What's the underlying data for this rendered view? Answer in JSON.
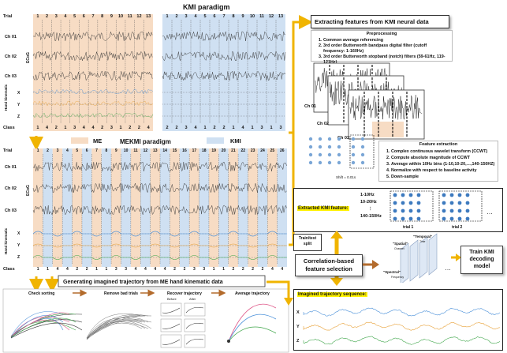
{
  "colors": {
    "me_shade": "#f7dcc4",
    "kmi_shade": "#cfe0f2",
    "arrow": "#f0b400",
    "highlight": "#fff200",
    "trace": "#333333",
    "x_color": "#4a90d9",
    "y_color": "#e8a23a",
    "z_color": "#3fa64a"
  },
  "kmi_paradigm": {
    "title": "KMI paradigm",
    "trial_label": "Trial",
    "trials": [
      "1",
      "2",
      "3",
      "4",
      "5",
      "6",
      "7",
      "8",
      "9",
      "10",
      "11",
      "12",
      "13"
    ],
    "trials_right": [
      "1",
      "2",
      "3",
      "4",
      "5",
      "6",
      "7",
      "8",
      "9",
      "10",
      "11",
      "12",
      "13"
    ],
    "channels": [
      "Ch 01",
      "Ch 02",
      "Ch 03"
    ],
    "eeg_label": "ECoG",
    "kin_label": "Hand kinematic",
    "kin_axes": [
      "X",
      "Y",
      "Z"
    ],
    "class_label": "Class",
    "classes": [
      "1",
      "4",
      "2",
      "1",
      "3",
      "4",
      "4",
      "2",
      "3",
      "1",
      "2",
      "2",
      "4"
    ],
    "classes_right": [
      "2",
      "2",
      "3",
      "4",
      "1",
      "2",
      "2",
      "1",
      "4",
      "1",
      "3",
      "1",
      "3"
    ]
  },
  "mekmi_paradigm": {
    "title": "MEKMI paradigm",
    "me_label": "ME",
    "kmi_label": "KMI",
    "trial_label": "Trial",
    "trials": [
      "1",
      "2",
      "3",
      "4",
      "5",
      "6",
      "7",
      "8",
      "9",
      "10",
      "11",
      "12",
      "13",
      "14",
      "15",
      "16",
      "17",
      "18",
      "19",
      "20",
      "21",
      "22",
      "23",
      "24",
      "25",
      "26"
    ],
    "channels": [
      "Ch 01",
      "Ch 02",
      "Ch 03"
    ],
    "eeg_label": "ECoG",
    "kin_label": "Hand kinematic",
    "kin_axes": [
      "X",
      "Y",
      "Z"
    ],
    "class_label": "Class",
    "classes": [
      "1",
      "1",
      "4",
      "4",
      "2",
      "2",
      "1",
      "1",
      "3",
      "3",
      "4",
      "4",
      "4",
      "4",
      "2",
      "2",
      "3",
      "3",
      "1",
      "1",
      "2",
      "2",
      "2",
      "2",
      "4",
      "4"
    ]
  },
  "extract": {
    "title": "Extracting features from KMI neural data",
    "pre_title": "Preprocessing",
    "pre_steps": [
      "Common average referencing",
      "3rd order Butterworth bandpass digital filter (cutoff frequency: 1-160Hz)",
      "3rd order Butterworth stopband (notch) filters (59-61Hz, 119-121Hz)"
    ],
    "stack_labels": [
      "Ch 01",
      "Ch 02",
      "Ch 03"
    ],
    "shift_label": "Shift = 0.01s",
    "fe_title": "Feature extraction",
    "fe_steps": [
      "Complex continuous wavelet transform (CCWT)",
      "Compute absolute magnitude of CCWT",
      "Average within 10Hz bins (1-10,10-20,…,140-150HZ)",
      "Normalize with respect to baseline activity",
      "Down-sample"
    ]
  },
  "kmi_feature": {
    "title": "Extracted KMI feature:",
    "bins": [
      "1-10Hz",
      "10-20Hz",
      "⋮",
      "140-150Hz"
    ],
    "trial1": "trial 1",
    "trial2": "trial 2",
    "dots": "…"
  },
  "split_label": "Train/test split",
  "corr_label": "Correlation-based feature selection",
  "cube_labels": {
    "spatial": "\"Spatial\"",
    "temporal": "\"Temporal\"",
    "spectral": "\"Spectral\"",
    "time": "Time",
    "channel": "Channel",
    "frequency": "Frequency"
  },
  "train_label": "Train KMI decoding model",
  "imagined": {
    "title": "Imagined trajectory sequence:",
    "axes": [
      "X",
      "Y",
      "Z"
    ]
  },
  "gen_title": "Generating imagined trajectory from ME hand kinematic data",
  "steps": {
    "check": "Check sorting",
    "remove": "Remove bad trials",
    "recover": "Recover trajectory",
    "before": "Before",
    "after": "After",
    "average": "Average trajectory"
  }
}
